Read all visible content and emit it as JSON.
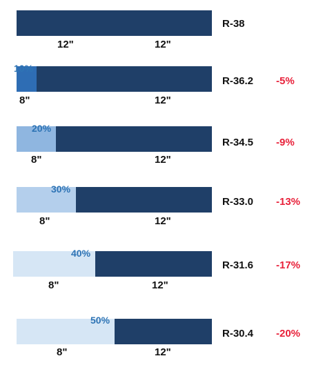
{
  "colors": {
    "dark_bar": "#1F3F68",
    "pct_label": "#2E74B5",
    "change_label": "#E8213A",
    "light_10": "#2E6DB4",
    "light_20": "#8FB6E0",
    "light_30": "#B4CFEC",
    "light_40": "#D6E6F5",
    "light_50": "#D6E6F5"
  },
  "rows": [
    {
      "r_value": "R-38",
      "change": "",
      "light_label": "12\"",
      "dark_label": "12\"",
      "pct": ""
    },
    {
      "r_value": "R-36.2",
      "change": "-5%",
      "light_label": "8\"",
      "dark_label": "12\"",
      "pct": "10%"
    },
    {
      "r_value": "R-34.5",
      "change": "-9%",
      "light_label": "8\"",
      "dark_label": "12\"",
      "pct": "20%"
    },
    {
      "r_value": "R-33.0",
      "change": "-13%",
      "light_label": "8\"",
      "dark_label": "12\"",
      "pct": "30%"
    },
    {
      "r_value": "R-31.6",
      "change": "-17%",
      "light_label": "8\"",
      "dark_label": "12\"",
      "pct": "40%"
    },
    {
      "r_value": "R-30.4",
      "change": "-20%",
      "light_label": "8\"",
      "dark_label": "12\"",
      "pct": "50%"
    }
  ]
}
